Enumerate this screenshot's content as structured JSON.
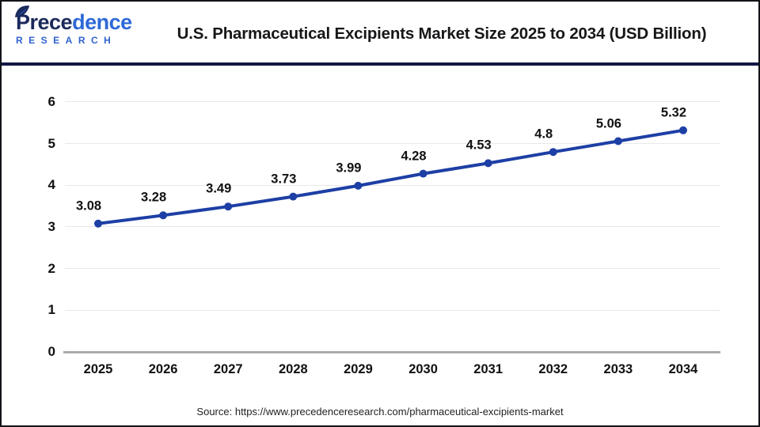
{
  "header": {
    "title": "U.S. Pharmaceutical Excipients Market Size 2025 to 2034 (USD Billion)"
  },
  "logo": {
    "part1": "Prece",
    "part2": "dence",
    "research": "RESEARCH",
    "icon": "leaf-icon"
  },
  "chart_data": {
    "type": "line",
    "title": "U.S. Pharmaceutical Excipients Market Size 2025 to 2034 (USD Billion)",
    "categories": [
      "2025",
      "2026",
      "2027",
      "2028",
      "2029",
      "2030",
      "2031",
      "2032",
      "2033",
      "2034"
    ],
    "values": [
      3.08,
      3.28,
      3.49,
      3.73,
      3.99,
      4.28,
      4.53,
      4.8,
      5.06,
      5.32
    ],
    "point_labels": [
      "3.08",
      "3.28",
      "3.49",
      "3.73",
      "3.99",
      "4.28",
      "4.53",
      "4.8",
      "5.06",
      "5.32"
    ],
    "xlabel": "",
    "ylabel": "",
    "ylim": [
      0,
      6
    ],
    "yticks": [
      0,
      1,
      2,
      3,
      4,
      5,
      6
    ],
    "grid": true,
    "legend": "none",
    "line_color": "#1d3fa5",
    "marker": "circle"
  },
  "footer": {
    "source": "Source: https://www.precedenceresearch.com/pharmaceutical-excipients-market"
  },
  "colors": {
    "line": "#1d3fa5",
    "gridline": "#e8e8e8",
    "axis_line": "#ababab",
    "divider": "#141743",
    "logo_navy": "#1b2a5c",
    "logo_blue": "#2e68d8",
    "research_blue": "#2f62d0"
  }
}
